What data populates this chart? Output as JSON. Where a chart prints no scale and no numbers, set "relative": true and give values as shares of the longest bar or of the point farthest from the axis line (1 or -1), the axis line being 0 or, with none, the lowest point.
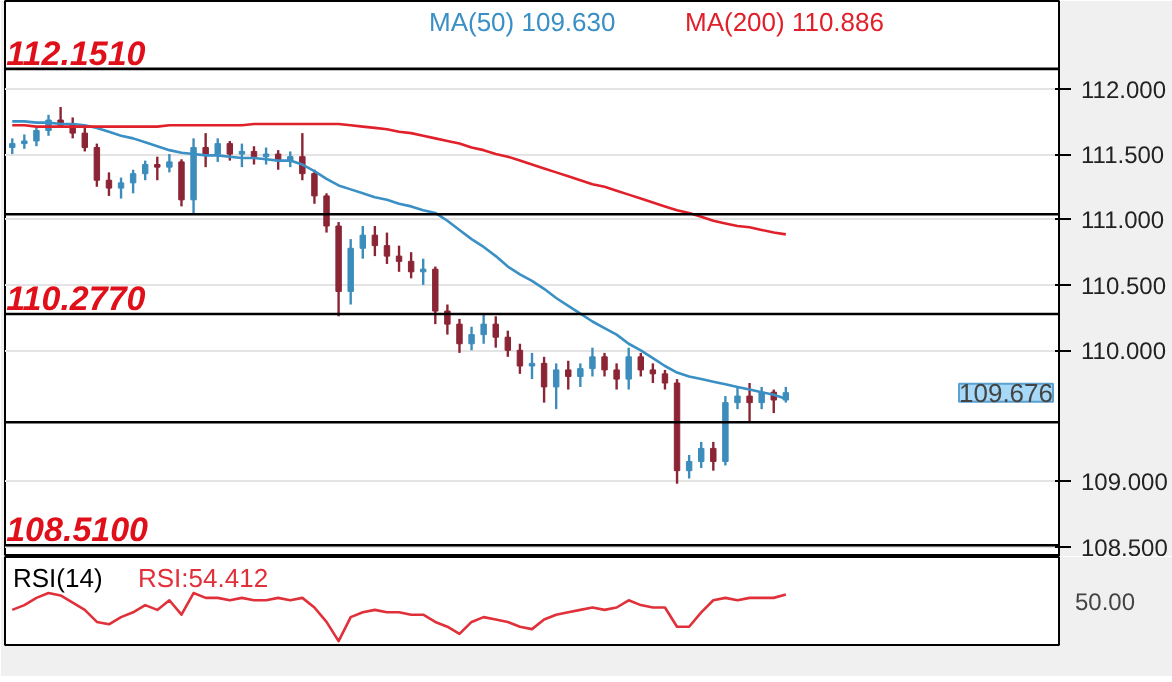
{
  "chart_data": [
    {
      "type": "candlestick",
      "categories": [
        null,
        null,
        null,
        null,
        null,
        null,
        null,
        null,
        null,
        null,
        null,
        null,
        null,
        null,
        null,
        null,
        null,
        null,
        null,
        null,
        null,
        null,
        null,
        null,
        null,
        null,
        null,
        null,
        null,
        null,
        null,
        null,
        null,
        null,
        null,
        null,
        null,
        null,
        null,
        null,
        null,
        null,
        null,
        null,
        null,
        null,
        null,
        null,
        null,
        null,
        null,
        null,
        null,
        null,
        null,
        null,
        null,
        null,
        null,
        null,
        null,
        null,
        null,
        null,
        null
      ],
      "ohlc": [
        [
          111.55,
          111.62,
          111.5,
          111.58
        ],
        [
          111.58,
          111.65,
          111.54,
          111.6
        ],
        [
          111.6,
          111.7,
          111.56,
          111.68
        ],
        [
          111.68,
          111.8,
          111.64,
          111.76
        ],
        [
          111.76,
          111.86,
          111.7,
          111.72
        ],
        [
          111.72,
          111.78,
          111.62,
          111.66
        ],
        [
          111.66,
          111.7,
          111.52,
          111.55
        ],
        [
          111.55,
          111.58,
          111.25,
          111.3
        ],
        [
          111.3,
          111.36,
          111.18,
          111.24
        ],
        [
          111.24,
          111.32,
          111.16,
          111.28
        ],
        [
          111.28,
          111.38,
          111.2,
          111.35
        ],
        [
          111.35,
          111.45,
          111.3,
          111.42
        ],
        [
          111.42,
          111.48,
          111.3,
          111.4
        ],
        [
          111.4,
          111.5,
          111.36,
          111.44
        ],
        [
          111.44,
          111.46,
          111.1,
          111.15
        ],
        [
          111.15,
          111.62,
          111.04,
          111.55
        ],
        [
          111.55,
          111.66,
          111.4,
          111.5
        ],
        [
          111.5,
          111.62,
          111.44,
          111.58
        ],
        [
          111.58,
          111.6,
          111.45,
          111.5
        ],
        [
          111.5,
          111.58,
          111.4,
          111.52
        ],
        [
          111.52,
          111.56,
          111.42,
          111.48
        ],
        [
          111.48,
          111.55,
          111.42,
          111.5
        ],
        [
          111.5,
          111.53,
          111.38,
          111.45
        ],
        [
          111.45,
          111.52,
          111.4,
          111.48
        ],
        [
          111.48,
          111.66,
          111.3,
          111.35
        ],
        [
          111.35,
          111.38,
          111.12,
          111.18
        ],
        [
          111.18,
          111.2,
          110.9,
          110.95
        ],
        [
          110.95,
          110.98,
          110.26,
          110.45
        ],
        [
          110.45,
          110.85,
          110.35,
          110.78
        ],
        [
          110.78,
          110.95,
          110.7,
          110.88
        ],
        [
          110.88,
          110.95,
          110.72,
          110.8
        ],
        [
          110.8,
          110.9,
          110.66,
          110.72
        ],
        [
          110.72,
          110.8,
          110.6,
          110.68
        ],
        [
          110.68,
          110.75,
          110.55,
          110.6
        ],
        [
          110.6,
          110.7,
          110.5,
          110.62
        ],
        [
          110.62,
          110.64,
          110.2,
          110.3
        ],
        [
          110.3,
          110.35,
          110.12,
          110.2
        ],
        [
          110.2,
          110.24,
          109.98,
          110.05
        ],
        [
          110.05,
          110.18,
          110.0,
          110.12
        ],
        [
          110.12,
          110.27,
          110.05,
          110.2
        ],
        [
          110.2,
          110.26,
          110.02,
          110.1
        ],
        [
          110.1,
          110.15,
          109.95,
          110.0
        ],
        [
          110.0,
          110.05,
          109.82,
          109.88
        ],
        [
          109.88,
          109.98,
          109.78,
          109.9
        ],
        [
          109.9,
          109.95,
          109.6,
          109.72
        ],
        [
          109.72,
          109.9,
          109.55,
          109.85
        ],
        [
          109.85,
          109.92,
          109.7,
          109.8
        ],
        [
          109.8,
          109.9,
          109.72,
          109.86
        ],
        [
          109.86,
          110.02,
          109.8,
          109.95
        ],
        [
          109.95,
          109.98,
          109.8,
          109.85
        ],
        [
          109.85,
          109.9,
          109.7,
          109.78
        ],
        [
          109.78,
          110.02,
          109.7,
          109.95
        ],
        [
          109.95,
          109.98,
          109.8,
          109.85
        ],
        [
          109.85,
          109.9,
          109.75,
          109.82
        ],
        [
          109.82,
          109.85,
          109.7,
          109.75
        ],
        [
          109.75,
          109.78,
          108.98,
          109.08
        ],
        [
          109.08,
          109.2,
          109.02,
          109.15
        ],
        [
          109.15,
          109.3,
          109.1,
          109.25
        ],
        [
          109.25,
          109.3,
          109.08,
          109.15
        ],
        [
          109.15,
          109.65,
          109.12,
          109.6
        ],
        [
          109.6,
          109.72,
          109.55,
          109.65
        ],
        [
          109.65,
          109.75,
          109.45,
          109.6
        ],
        [
          109.6,
          109.72,
          109.55,
          109.68
        ],
        [
          109.68,
          109.7,
          109.52,
          109.62
        ],
        [
          109.62,
          109.72,
          109.6,
          109.676
        ]
      ],
      "colors": [
        "#3c8dbc",
        "#3c8dbc",
        "#3c8dbc",
        "#3c8dbc",
        "#8b2535",
        "#8b2535",
        "#8b2535",
        "#8b2535",
        "#8b2535",
        "#3c8dbc",
        "#3c8dbc",
        "#3c8dbc",
        "#8b2535",
        "#3c8dbc",
        "#8b2535",
        "#3c8dbc",
        "#8b2535",
        "#3c8dbc",
        "#8b2535",
        "#3c8dbc",
        "#8b2535",
        "#3c8dbc",
        "#8b2535",
        "#3c8dbc",
        "#8b2535",
        "#8b2535",
        "#8b2535",
        "#8b2535",
        "#3c8dbc",
        "#3c8dbc",
        "#8b2535",
        "#8b2535",
        "#8b2535",
        "#8b2535",
        "#3c8dbc",
        "#8b2535",
        "#8b2535",
        "#8b2535",
        "#3c8dbc",
        "#3c8dbc",
        "#8b2535",
        "#8b2535",
        "#8b2535",
        "#3c8dbc",
        "#8b2535",
        "#3c8dbc",
        "#8b2535",
        "#3c8dbc",
        "#3c8dbc",
        "#8b2535",
        "#8b2535",
        "#3c8dbc",
        "#8b2535",
        "#8b2535",
        "#8b2535",
        "#8b2535",
        "#3c8dbc",
        "#3c8dbc",
        "#8b2535",
        "#3c8dbc",
        "#3c8dbc",
        "#8b2535",
        "#3c8dbc",
        "#8b2535",
        "#3c8dbc"
      ],
      "series": [
        {
          "type": "line",
          "name": "MA(50)  109.630",
          "color": "#3a8fc4",
          "values": [
            111.75,
            111.75,
            111.74,
            111.74,
            111.73,
            111.73,
            111.72,
            111.7,
            111.67,
            111.64,
            111.62,
            111.59,
            111.56,
            111.53,
            111.51,
            111.5,
            111.49,
            111.49,
            111.48,
            111.47,
            111.47,
            111.46,
            111.45,
            111.45,
            111.42,
            111.37,
            111.31,
            111.26,
            111.23,
            111.2,
            111.17,
            111.15,
            111.12,
            111.1,
            111.07,
            111.05,
            110.99,
            110.92,
            110.85,
            110.79,
            110.72,
            110.64,
            110.58,
            110.53,
            110.47,
            110.4,
            110.34,
            110.28,
            110.22,
            110.17,
            110.12,
            110.05,
            110.0,
            109.94,
            109.88,
            109.83,
            109.8,
            109.78,
            109.76,
            109.74,
            109.72,
            109.7,
            109.68,
            109.66,
            109.63
          ]
        },
        {
          "type": "line",
          "name": "MA(200)  110.886",
          "color": "#e0202a",
          "values": [
            111.72,
            111.72,
            111.71,
            111.71,
            111.71,
            111.71,
            111.71,
            111.71,
            111.71,
            111.71,
            111.71,
            111.71,
            111.71,
            111.72,
            111.72,
            111.72,
            111.72,
            111.72,
            111.72,
            111.72,
            111.73,
            111.73,
            111.73,
            111.73,
            111.73,
            111.73,
            111.73,
            111.73,
            111.72,
            111.71,
            111.7,
            111.69,
            111.67,
            111.66,
            111.64,
            111.62,
            111.6,
            111.58,
            111.55,
            111.53,
            111.5,
            111.48,
            111.45,
            111.42,
            111.39,
            111.36,
            111.33,
            111.3,
            111.27,
            111.25,
            111.22,
            111.19,
            111.16,
            111.13,
            111.1,
            111.07,
            111.05,
            111.02,
            110.99,
            110.97,
            110.95,
            110.94,
            110.92,
            110.9,
            110.886
          ]
        }
      ],
      "ylim": [
        108.42,
        112.67
      ],
      "yticks": [
        {
          "value": 108.5,
          "label": "108.500"
        },
        {
          "value": 109,
          "label": "109.000"
        },
        {
          "value": 110,
          "label": "110.000"
        },
        {
          "value": 110.5,
          "label": "110.500"
        },
        {
          "value": 111,
          "label": "111.000"
        },
        {
          "value": 111.5,
          "label": "111.500"
        },
        {
          "value": 112,
          "label": "112.000"
        }
      ],
      "ref_lines": [
        {
          "axis": "y",
          "value": 112.151,
          "label": "112.1510",
          "color": "#000000"
        },
        {
          "axis": "y",
          "value": 111.04,
          "label": null,
          "color": "#000000"
        },
        {
          "axis": "y",
          "value": 110.277,
          "label": "110.2770",
          "color": "#000000"
        },
        {
          "axis": "y",
          "value": 109.45,
          "label": null,
          "color": "#000000"
        },
        {
          "axis": "y",
          "value": 108.51,
          "label": "108.5100",
          "color": "#000000"
        }
      ],
      "annotations": [
        "109.676"
      ],
      "grid": "y",
      "legend": "top"
    },
    {
      "type": "line",
      "title": "RSI(14)",
      "categories": [
        null,
        null,
        null,
        null,
        null,
        null,
        null,
        null,
        null,
        null,
        null,
        null,
        null,
        null,
        null,
        null,
        null,
        null,
        null,
        null,
        null,
        null,
        null,
        null,
        null,
        null,
        null,
        null,
        null,
        null,
        null,
        null,
        null,
        null,
        null,
        null,
        null,
        null,
        null,
        null,
        null,
        null,
        null,
        null,
        null,
        null,
        null,
        null,
        null,
        null,
        null,
        null,
        null,
        null,
        null,
        null,
        null,
        null,
        null,
        null,
        null,
        null,
        null,
        null,
        null
      ],
      "series": [
        {
          "name": "RSI:54.412",
          "color": "#e0303a",
          "values": [
            0.65,
            0.75,
            0.9,
            1.0,
            0.95,
            0.8,
            0.65,
            0.4,
            0.35,
            0.5,
            0.6,
            0.75,
            0.65,
            0.85,
            0.55,
            1.0,
            0.9,
            0.9,
            0.85,
            0.9,
            0.85,
            0.85,
            0.9,
            0.85,
            0.9,
            0.7,
            0.4,
            0,
            0.5,
            0.6,
            0.65,
            0.6,
            0.6,
            0.55,
            0.55,
            0.4,
            0.3,
            0.15,
            0.4,
            0.5,
            0.45,
            0.4,
            0.3,
            0.25,
            0.45,
            0.55,
            0.6,
            0.65,
            0.7,
            0.65,
            0.7,
            0.85,
            0.75,
            0.7,
            0.7,
            0.3,
            0.3,
            0.6,
            0.85,
            0.9,
            0.85,
            0.9,
            0.9,
            0.9,
            0.97
          ]
        }
      ],
      "relative": true,
      "annotations": [
        "50.00"
      ],
      "legend": "top left"
    }
  ]
}
